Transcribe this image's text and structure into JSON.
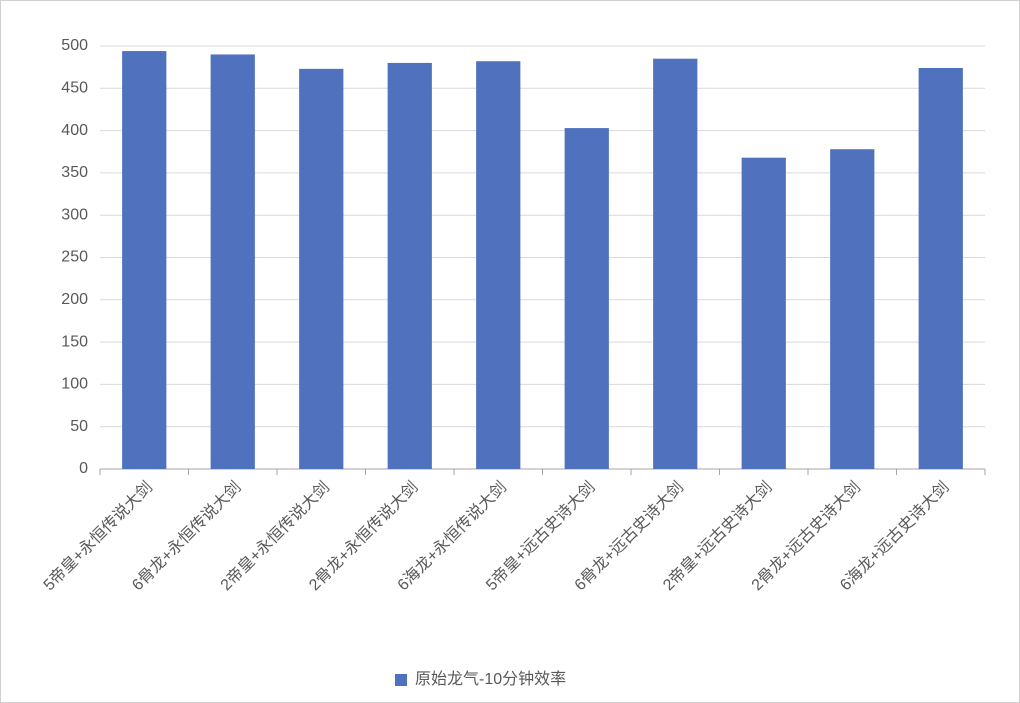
{
  "chart_data": {
    "type": "bar",
    "categories": [
      "5帝皇+永恒传说大剑",
      "6骨龙+永恒传说大剑",
      "2帝皇+永恒传说大剑",
      "2骨龙+永恒传说大剑",
      "6海龙+永恒传说大剑",
      "5帝皇+远古史诗大剑",
      "6骨龙+远古史诗大剑",
      "2帝皇+远古史诗大剑",
      "2骨龙+远古史诗大剑",
      "6海龙+远古史诗大剑"
    ],
    "series": [
      {
        "name": "原始龙气-10分钟效率",
        "color": "#4f71be",
        "values": [
          494,
          490,
          473,
          480,
          482,
          403,
          485,
          368,
          378,
          474
        ]
      }
    ],
    "ylim": [
      0,
      500
    ],
    "yticks": [
      0,
      50,
      100,
      150,
      200,
      250,
      300,
      350,
      400,
      450,
      500
    ],
    "grid": true,
    "legend": "bottom"
  }
}
